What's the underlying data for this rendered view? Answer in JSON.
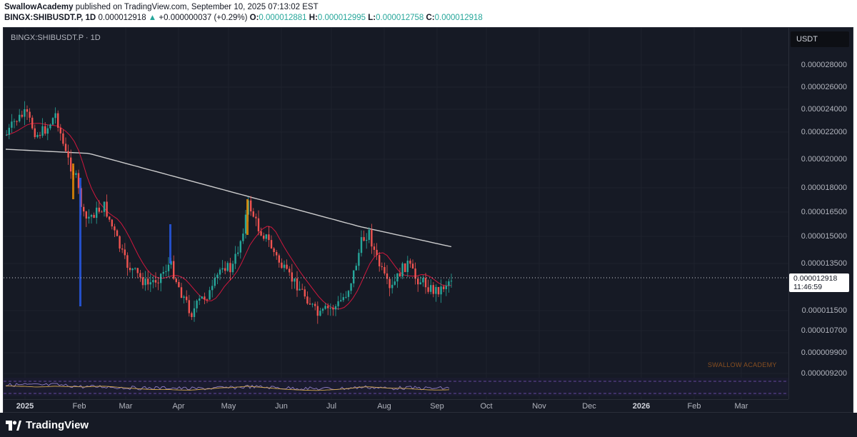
{
  "header": {
    "author": "SwallowAcademy",
    "published_text": "published on TradingView.com, September 10, 2025 07:13:02 EST",
    "symbol_line": "BINGX:SHIBUSDT.P, 1D",
    "last": "0.000012918",
    "arrow": "▲",
    "change": "+0.000000037 (+0.29%)",
    "o_label": "O:",
    "o_value": "0.000012881",
    "h_label": "H:",
    "h_value": "0.000012995",
    "l_label": "L:",
    "l_value": "0.000012758",
    "c_label": "C:",
    "c_value": "0.000012918"
  },
  "chart": {
    "symbol_label": "BINGX:SHIBUSDT.P · 1D",
    "currency_button": "USDT",
    "current_price": "0.000012918",
    "countdown": "11:46:59",
    "watermark": "SWALLOW ACADEMY",
    "price_ticks": [
      "0.000028000",
      "0.000026000",
      "0.000024000",
      "0.000022000",
      "0.000020000",
      "0.000018000",
      "0.000016500",
      "0.000015000",
      "0.000013500",
      "0.000011500",
      "0.000010700",
      "0.000009900",
      "0.000009200"
    ],
    "time_ticks": [
      "2025",
      "Feb",
      "Mar",
      "Apr",
      "May",
      "Jun",
      "Jul",
      "Aug",
      "Sep",
      "Oct",
      "Nov",
      "Dec",
      "2026",
      "Feb",
      "Mar"
    ],
    "colors": {
      "background": "#161a25",
      "up": "#26a69a",
      "down": "#ef5350",
      "volume_highlight_up": "#2962ff",
      "volume_highlight_down": "#ff9800",
      "ma_short": "#ff1744",
      "ma_long": "#e0e0e0",
      "oscillator": "#7e57c2"
    }
  },
  "footer": {
    "brand": "TradingView"
  }
}
